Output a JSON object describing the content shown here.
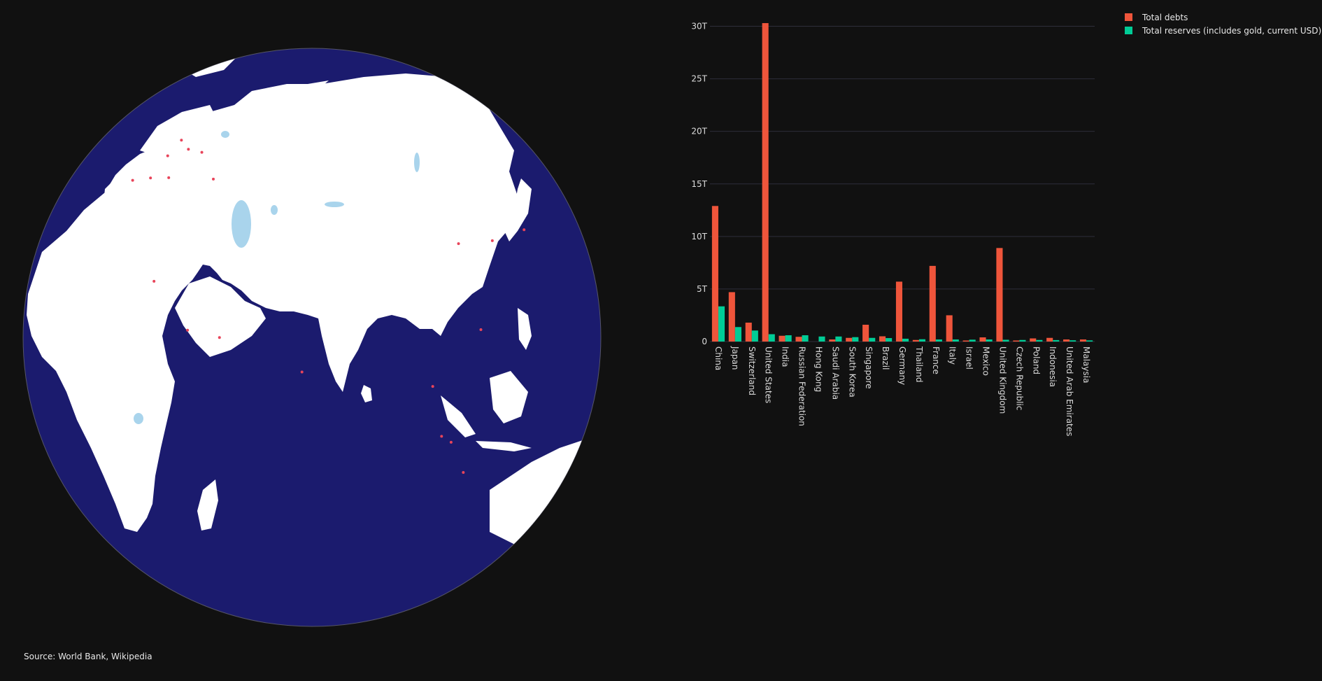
{
  "source_note": "Source: World Bank, Wikipedia",
  "colors": {
    "background": "#111111",
    "ocean": "#1b1b6e",
    "land": "#ffffff",
    "lakes": "#a9d4ec",
    "markers": "#e8445a",
    "debt": "#ef553b",
    "reserves": "#00cc96",
    "grid": "#2e2e3a"
  },
  "chart_data": [
    {
      "type": "bar",
      "title": "",
      "xlabel": "",
      "ylabel": "",
      "ylim": [
        0,
        30.5
      ],
      "y_ticks": [
        {
          "value": 0,
          "label": "0"
        },
        {
          "value": 5,
          "label": "5T"
        },
        {
          "value": 10,
          "label": "10T"
        },
        {
          "value": 15,
          "label": "15T"
        },
        {
          "value": 20,
          "label": "20T"
        },
        {
          "value": 25,
          "label": "25T"
        },
        {
          "value": 30,
          "label": "30T"
        }
      ],
      "grid": true,
      "legend_position": "top-right",
      "categories": [
        "China",
        "Japan",
        "Switzerland",
        "United States",
        "India",
        "Russian Federation",
        "Hong Kong",
        "Saudi Arabia",
        "South Korea",
        "Singapore",
        "Brazil",
        "Germany",
        "Thailand",
        "France",
        "Italy",
        "Israel",
        "Mexico",
        "United Kingdom",
        "Czech Republic",
        "Poland",
        "Indonesia",
        "United Arab Emirates",
        "Malaysia"
      ],
      "series": [
        {
          "name": "Total debts",
          "values": [
            12.9,
            4.7,
            1.8,
            30.3,
            0.55,
            0.45,
            0.0,
            0.2,
            0.35,
            1.6,
            0.5,
            5.7,
            0.15,
            7.2,
            2.5,
            0.1,
            0.4,
            8.9,
            0.1,
            0.3,
            0.35,
            0.2,
            0.2
          ]
        },
        {
          "name": "Total reserves (includes gold, current USD)",
          "values": [
            3.35,
            1.38,
            1.05,
            0.7,
            0.6,
            0.6,
            0.48,
            0.48,
            0.42,
            0.35,
            0.33,
            0.27,
            0.22,
            0.2,
            0.2,
            0.18,
            0.2,
            0.17,
            0.15,
            0.15,
            0.14,
            0.12,
            0.11
          ]
        }
      ]
    },
    {
      "type": "scatter",
      "title": "",
      "projection": "orthographic",
      "markers": [
        {
          "lon": 18.1,
          "lat": 59.3
        },
        {
          "lon": 24.9,
          "lat": 60.2
        },
        {
          "lon": 10.7,
          "lat": 59.9
        },
        {
          "lon": 37.6,
          "lat": 55.8
        },
        {
          "lon": 12.6,
          "lat": 55.7
        },
        {
          "lon": 21.0,
          "lat": 52.2
        },
        {
          "lon": 14.4,
          "lat": 50.1
        },
        {
          "lon": 8.5,
          "lat": 47.4
        },
        {
          "lon": 34.8,
          "lat": 32.1
        },
        {
          "lon": 46.7,
          "lat": 24.7
        },
        {
          "lon": 54.4,
          "lat": 24.5
        },
        {
          "lon": 72.9,
          "lat": 19.1
        },
        {
          "lon": 100.5,
          "lat": 13.8
        },
        {
          "lon": 101.7,
          "lat": 3.1
        },
        {
          "lon": 103.8,
          "lat": 1.35
        },
        {
          "lon": 106.8,
          "lat": -6.2
        },
        {
          "lon": 114.2,
          "lat": 22.3
        },
        {
          "lon": 116.4,
          "lat": 39.9
        },
        {
          "lon": 127.0,
          "lat": 37.6
        },
        {
          "lon": 139.7,
          "lat": 35.7
        }
      ]
    }
  ]
}
